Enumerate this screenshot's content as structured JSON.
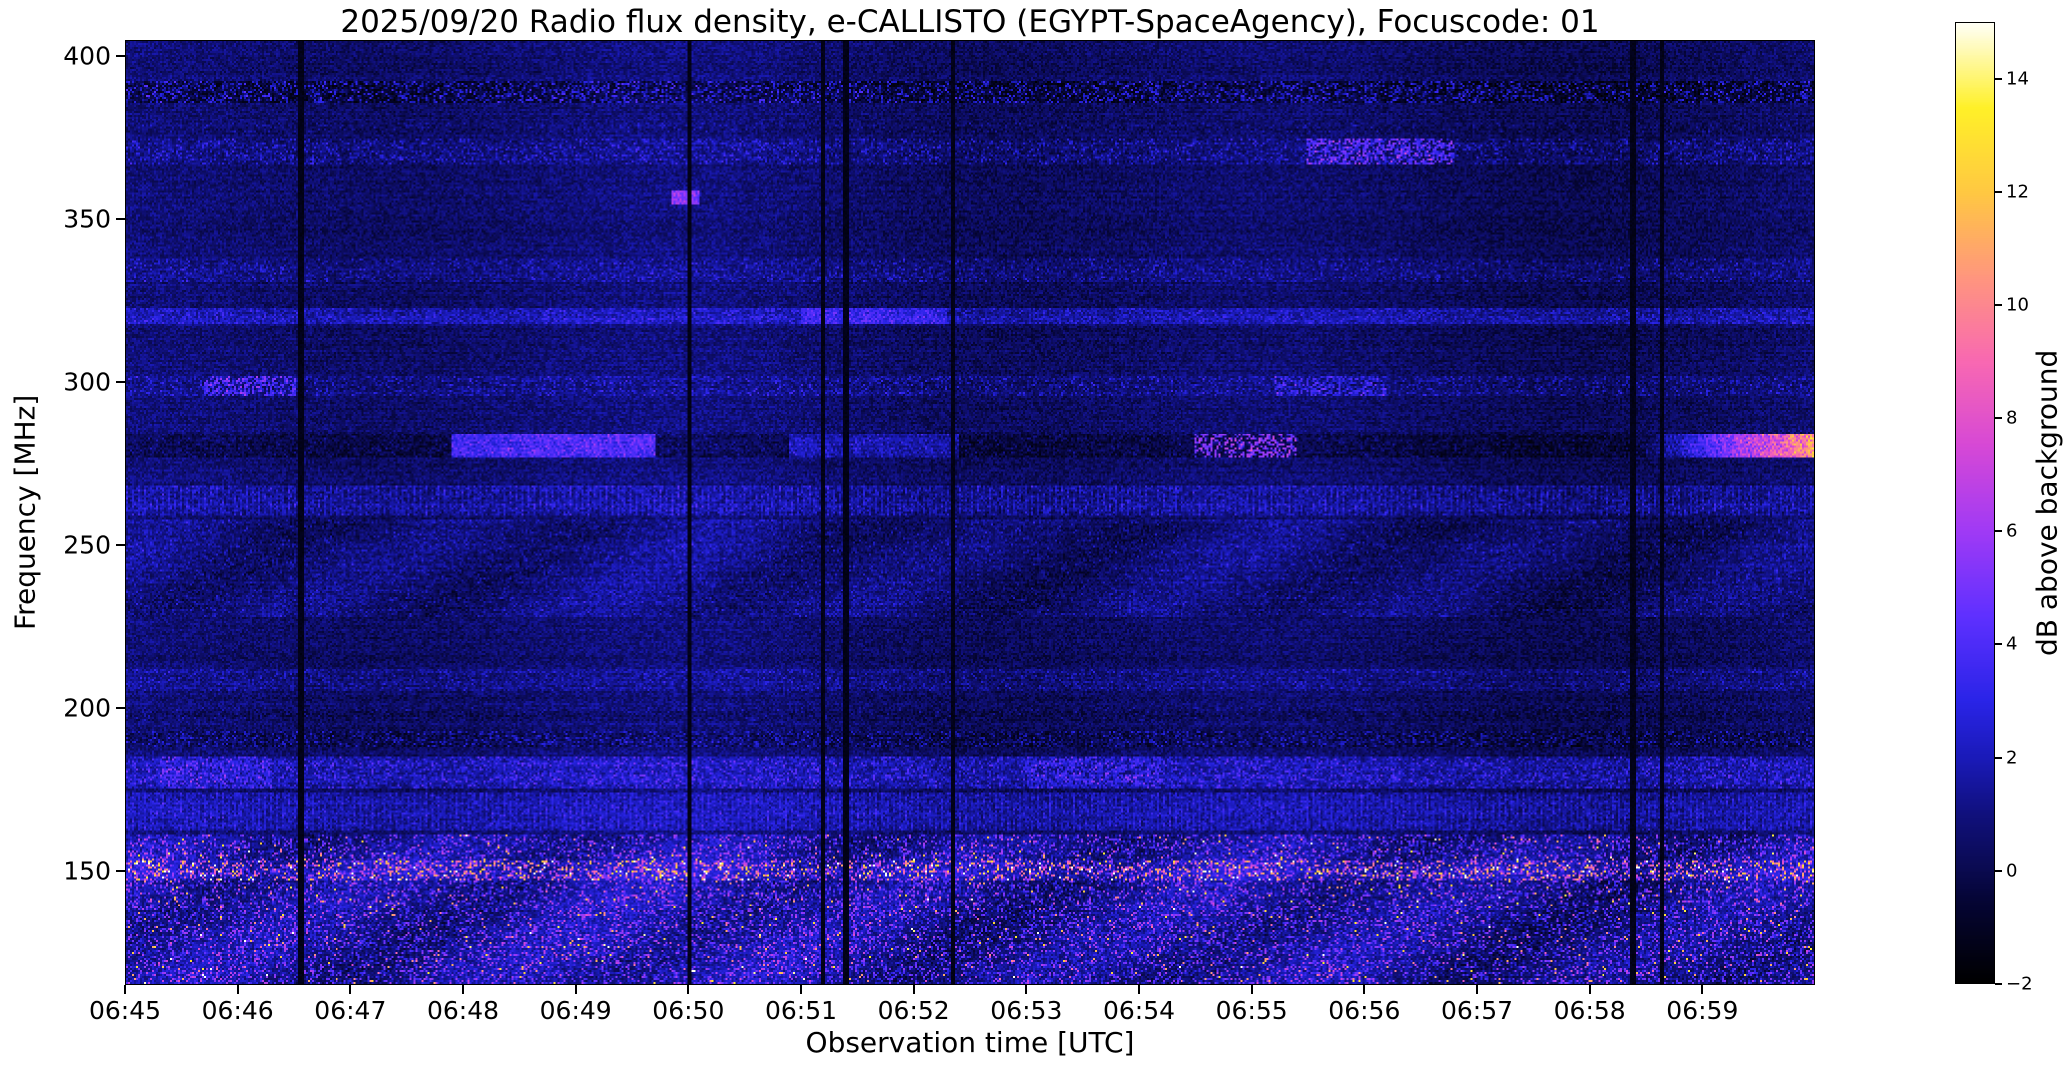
{
  "figure": {
    "title": "2025/09/20  Radio flux density, e-CALLISTO (EGYPT-SpaceAgency), Focuscode: 01",
    "xlabel": "Observation time [UTC]",
    "ylabel": "Frequency [MHz]",
    "colorbar_label": "dB above background"
  },
  "chart_data": {
    "type": "heatmap",
    "title": "2025/09/20  Radio flux density, e-CALLISTO (EGYPT-SpaceAgency), Focuscode: 01",
    "xlabel": "Observation time [UTC]",
    "ylabel": "Frequency [MHz]",
    "colorbar_label": "dB above background",
    "x_tick_labels": [
      "06:45",
      "06:46",
      "06:47",
      "06:48",
      "06:49",
      "06:50",
      "06:51",
      "06:52",
      "06:53",
      "06:54",
      "06:55",
      "06:56",
      "06:57",
      "06:58",
      "06:59"
    ],
    "x_range_minutes": [
      0,
      15
    ],
    "y_ticks_mhz": [
      400,
      350,
      300,
      250,
      200,
      150
    ],
    "freq_range_mhz": [
      115,
      405
    ],
    "value_range_db": [
      -2,
      15
    ],
    "colorbar_ticks_db": [
      -2,
      0,
      2,
      4,
      6,
      8,
      10,
      12,
      14
    ],
    "grid": false,
    "colormap_stops_db": [
      [
        -2.0,
        [
          0,
          0,
          0
        ]
      ],
      [
        -0.5,
        [
          5,
          5,
          55
        ]
      ],
      [
        0.0,
        [
          10,
          10,
          80
        ]
      ],
      [
        1.0,
        [
          16,
          16,
          125
        ]
      ],
      [
        2.0,
        [
          26,
          26,
          185
        ]
      ],
      [
        3.0,
        [
          42,
          36,
          232
        ]
      ],
      [
        4.5,
        [
          95,
          48,
          255
        ]
      ],
      [
        6.0,
        [
          160,
          58,
          245
        ]
      ],
      [
        7.5,
        [
          214,
          72,
          214
        ]
      ],
      [
        9.0,
        [
          248,
          104,
          178
        ]
      ],
      [
        10.5,
        [
          255,
          150,
          126
        ]
      ],
      [
        12.0,
        [
          255,
          200,
          66
        ]
      ],
      [
        13.5,
        [
          255,
          240,
          40
        ]
      ],
      [
        15.0,
        [
          255,
          255,
          246
        ]
      ]
    ],
    "background": {
      "base": -0.4,
      "noise": 1.8,
      "col_wave_amp1": 0.3,
      "col_wave_amp2": 0.2,
      "row_noise": 0.5
    },
    "bands": [
      {
        "name": "rfi-390-dark-dashes",
        "f0": 386,
        "f1": 393,
        "base": -1.3,
        "speckle_p": 0.45,
        "speckle_amp": 4.2
      },
      {
        "name": "band-378",
        "f0": 377,
        "f1": 380,
        "base": -0.2,
        "speckle_p": 0.3,
        "speckle_amp": 1.2
      },
      {
        "name": "speckle-370",
        "f0": 367,
        "f1": 375,
        "base": 0.1,
        "speckle_p": 0.35,
        "speckle_amp": 2.4,
        "segments": [
          {
            "t0": 10.5,
            "t1": 11.8,
            "add": 3.5,
            "sparse": true
          }
        ]
      },
      {
        "name": "spot-357-0650",
        "f0": 355,
        "f1": 359,
        "segments": [
          {
            "t0": 4.85,
            "t1": 5.1,
            "add": 4.5
          }
        ]
      },
      {
        "name": "band-335",
        "f0": 331,
        "f1": 338,
        "base": 0.2,
        "speckle_p": 0.3,
        "speckle_amp": 2.0
      },
      {
        "name": "line-320",
        "f0": 318,
        "f1": 323,
        "base": 0.9,
        "speckle_p": 0.5,
        "speckle_amp": 1.6,
        "segments": [
          {
            "t0": 6.0,
            "t1": 7.3,
            "add": 1.5
          }
        ]
      },
      {
        "name": "band-300",
        "f0": 296,
        "f1": 302,
        "base": 0.2,
        "speckle_p": 0.3,
        "speckle_amp": 2.2,
        "segments": [
          {
            "t0": 0.7,
            "t1": 1.5,
            "add": 2.8,
            "sparse": true
          },
          {
            "t0": 10.2,
            "t1": 11.2,
            "add": 2.0,
            "sparse": true
          }
        ]
      },
      {
        "name": "line-280-dark-with-bright-streaks",
        "f0": 277,
        "f1": 284,
        "base": -0.9,
        "speckle_p": 0.35,
        "speckle_amp": 1.4,
        "segments": [
          {
            "t0": 2.9,
            "t1": 4.7,
            "add": 3.8
          },
          {
            "t0": 5.9,
            "t1": 7.4,
            "add": 2.0
          },
          {
            "t0": 9.5,
            "t1": 10.4,
            "add": 5.5,
            "sparse": true
          },
          {
            "t0": 13.4,
            "t1": 15.0,
            "add": 10.5,
            "ramp": true
          }
        ]
      },
      {
        "name": "comb-263",
        "f0": 259,
        "f1": 268,
        "base": 0.3,
        "comb": 0.9,
        "speckle_p": 0.5,
        "speckle_amp": 1.6
      },
      {
        "name": "blotchy-228-258",
        "f0": 228,
        "f1": 258,
        "base": 0.15,
        "speckle_p": 0.22,
        "speckle_amp": 1.5,
        "blotch": 1.0
      },
      {
        "name": "band-208",
        "f0": 205,
        "f1": 212,
        "base": 0.3,
        "speckle_p": 0.3,
        "speckle_amp": 1.6
      },
      {
        "name": "band-198",
        "f0": 196,
        "f1": 200,
        "base": -0.3,
        "speckle_p": 0.25,
        "speckle_amp": 1.2
      },
      {
        "name": "dashline-190",
        "f0": 188,
        "f1": 193,
        "base": -0.7,
        "speckle_p": 0.45,
        "speckle_amp": 2.6
      },
      {
        "name": "bright-180",
        "f0": 175,
        "f1": 185,
        "base": 1.0,
        "speckle_p": 0.4,
        "speckle_amp": 2.6,
        "segments": [
          {
            "t0": 0.3,
            "t1": 1.3,
            "add": 1.5,
            "sparse": true
          },
          {
            "t0": 8.0,
            "t1": 9.2,
            "add": 1.5,
            "sparse": true
          }
        ]
      },
      {
        "name": "comb-168",
        "f0": 162,
        "f1": 174,
        "base": 0.7,
        "comb": 0.8,
        "speckle_p": 0.5,
        "speckle_amp": 1.4
      },
      {
        "name": "low-freq-bright-noise",
        "f0": 115,
        "f1": 161,
        "base": 0.7,
        "speckle_p": 0.3,
        "speckle_amp": 5.0,
        "hot_p": 0.018,
        "hot_amp": 11,
        "blotch": 1.3
      },
      {
        "name": "line-150-hot",
        "f0": 147,
        "f1": 153,
        "base": 0.8,
        "speckle_p": 0.4,
        "speckle_amp": 5.5,
        "hot_p": 0.03,
        "hot_amp": 12
      }
    ],
    "time_gaps_min": [
      {
        "t": 1.55,
        "w": 0.025
      },
      {
        "t": 5.0,
        "w": 0.02
      },
      {
        "t": 6.2,
        "w": 0.02
      },
      {
        "t": 6.4,
        "w": 0.025
      },
      {
        "t": 7.35,
        "w": 0.015
      },
      {
        "t": 13.4,
        "w": 0.025
      },
      {
        "t": 13.65,
        "w": 0.02
      }
    ]
  }
}
